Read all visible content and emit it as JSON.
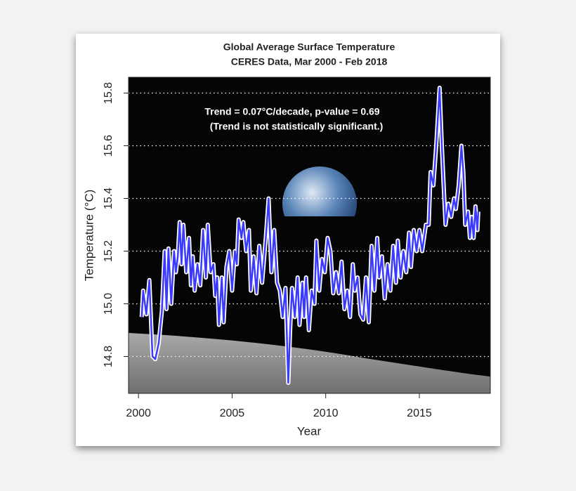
{
  "chart_data": {
    "type": "line",
    "title": "Global Average Surface Temperature",
    "subtitle": "CERES Data, Mar 2000 - Feb 2018",
    "annotations": [
      "Trend = 0.07°C/decade, p-value = 0.69",
      "(Trend is not statistically significant.)"
    ],
    "x_label": "Year",
    "y_label": "Temperature (°C)",
    "color": "#3a3aff",
    "x": [
      2000.17,
      2000.25,
      2000.42,
      2000.58,
      2000.75,
      2000.9,
      2001.08,
      2001.25,
      2001.4,
      2001.5,
      2001.6,
      2001.75,
      2001.9,
      2002.0,
      2002.1,
      2002.2,
      2002.3,
      2002.4,
      2002.55,
      2002.7,
      2002.8,
      2002.9,
      2003.0,
      2003.15,
      2003.3,
      2003.45,
      2003.6,
      2003.7,
      2003.85,
      2004.0,
      2004.1,
      2004.2,
      2004.3,
      2004.45,
      2004.55,
      2004.7,
      2004.85,
      2005.0,
      2005.15,
      2005.25,
      2005.35,
      2005.5,
      2005.6,
      2005.75,
      2005.9,
      2006.0,
      2006.15,
      2006.3,
      2006.45,
      2006.6,
      2006.8,
      2006.95,
      2007.1,
      2007.25,
      2007.4,
      2007.55,
      2007.7,
      2007.85,
      2008.0,
      2008.1,
      2008.2,
      2008.35,
      2008.5,
      2008.6,
      2008.75,
      2008.85,
      2008.95,
      2009.1,
      2009.25,
      2009.4,
      2009.5,
      2009.65,
      2009.8,
      2009.95,
      2010.1,
      2010.25,
      2010.4,
      2010.55,
      2010.7,
      2010.85,
      2011.0,
      2011.15,
      2011.3,
      2011.45,
      2011.55,
      2011.7,
      2011.85,
      2012.0,
      2012.15,
      2012.3,
      2012.45,
      2012.6,
      2012.75,
      2012.85,
      2013.0,
      2013.15,
      2013.3,
      2013.45,
      2013.6,
      2013.75,
      2013.85,
      2014.0,
      2014.15,
      2014.3,
      2014.45,
      2014.55,
      2014.7,
      2014.85,
      2015.0,
      2015.15,
      2015.35,
      2015.5,
      2015.6,
      2015.75,
      2015.9,
      2016.08,
      2016.2,
      2016.3,
      2016.4,
      2016.55,
      2016.7,
      2016.85,
      2016.95,
      2017.1,
      2017.25,
      2017.35,
      2017.45,
      2017.6,
      2017.7,
      2017.8,
      2017.9,
      2018.0,
      2018.1,
      2018.15
    ],
    "values": [
      14.95,
      15.05,
      14.96,
      15.09,
      14.8,
      14.79,
      14.85,
      14.97,
      15.2,
      14.98,
      15.21,
      15.0,
      15.2,
      15.12,
      15.18,
      15.31,
      15.15,
      15.3,
      15.12,
      15.25,
      15.07,
      15.18,
      15.05,
      15.15,
      15.07,
      15.28,
      15.1,
      15.3,
      15.12,
      15.15,
      15.03,
      15.1,
      14.92,
      15.1,
      14.93,
      15.14,
      15.2,
      15.05,
      15.2,
      15.15,
      15.32,
      15.25,
      15.31,
      15.2,
      15.28,
      15.05,
      15.18,
      15.04,
      15.22,
      15.08,
      15.25,
      15.4,
      15.12,
      15.28,
      15.08,
      15.05,
      14.95,
      15.06,
      14.7,
      14.9,
      15.06,
      14.95,
      15.1,
      14.92,
      15.08,
      14.95,
      15.1,
      14.9,
      15.05,
      15.0,
      15.24,
      15.05,
      15.17,
      15.12,
      15.25,
      15.2,
      15.04,
      15.12,
      15.04,
      15.16,
      14.98,
      15.05,
      14.95,
      15.15,
      15.05,
      15.1,
      14.96,
      14.94,
      15.1,
      14.93,
      15.22,
      15.05,
      15.25,
      15.1,
      15.18,
      15.02,
      15.15,
      15.05,
      15.22,
      15.08,
      15.24,
      15.1,
      15.2,
      15.12,
      15.27,
      15.14,
      15.28,
      15.2,
      15.28,
      15.2,
      15.3,
      15.3,
      15.5,
      15.45,
      15.6,
      15.82,
      15.6,
      15.45,
      15.3,
      15.38,
      15.33,
      15.4,
      15.36,
      15.45,
      15.6,
      15.5,
      15.3,
      15.35,
      15.25,
      15.33,
      15.25,
      15.37,
      15.28,
      15.35
    ],
    "xlim": [
      1999.47,
      2018.79
    ],
    "ylim": [
      14.66,
      15.86
    ],
    "xticks": [
      2000,
      2005,
      2010,
      2015
    ],
    "yticks": [
      14.8,
      {
        "value": 15,
        "label": "15.0"
      },
      15.2,
      15.4,
      15.6,
      15.8
    ],
    "grid": true
  }
}
